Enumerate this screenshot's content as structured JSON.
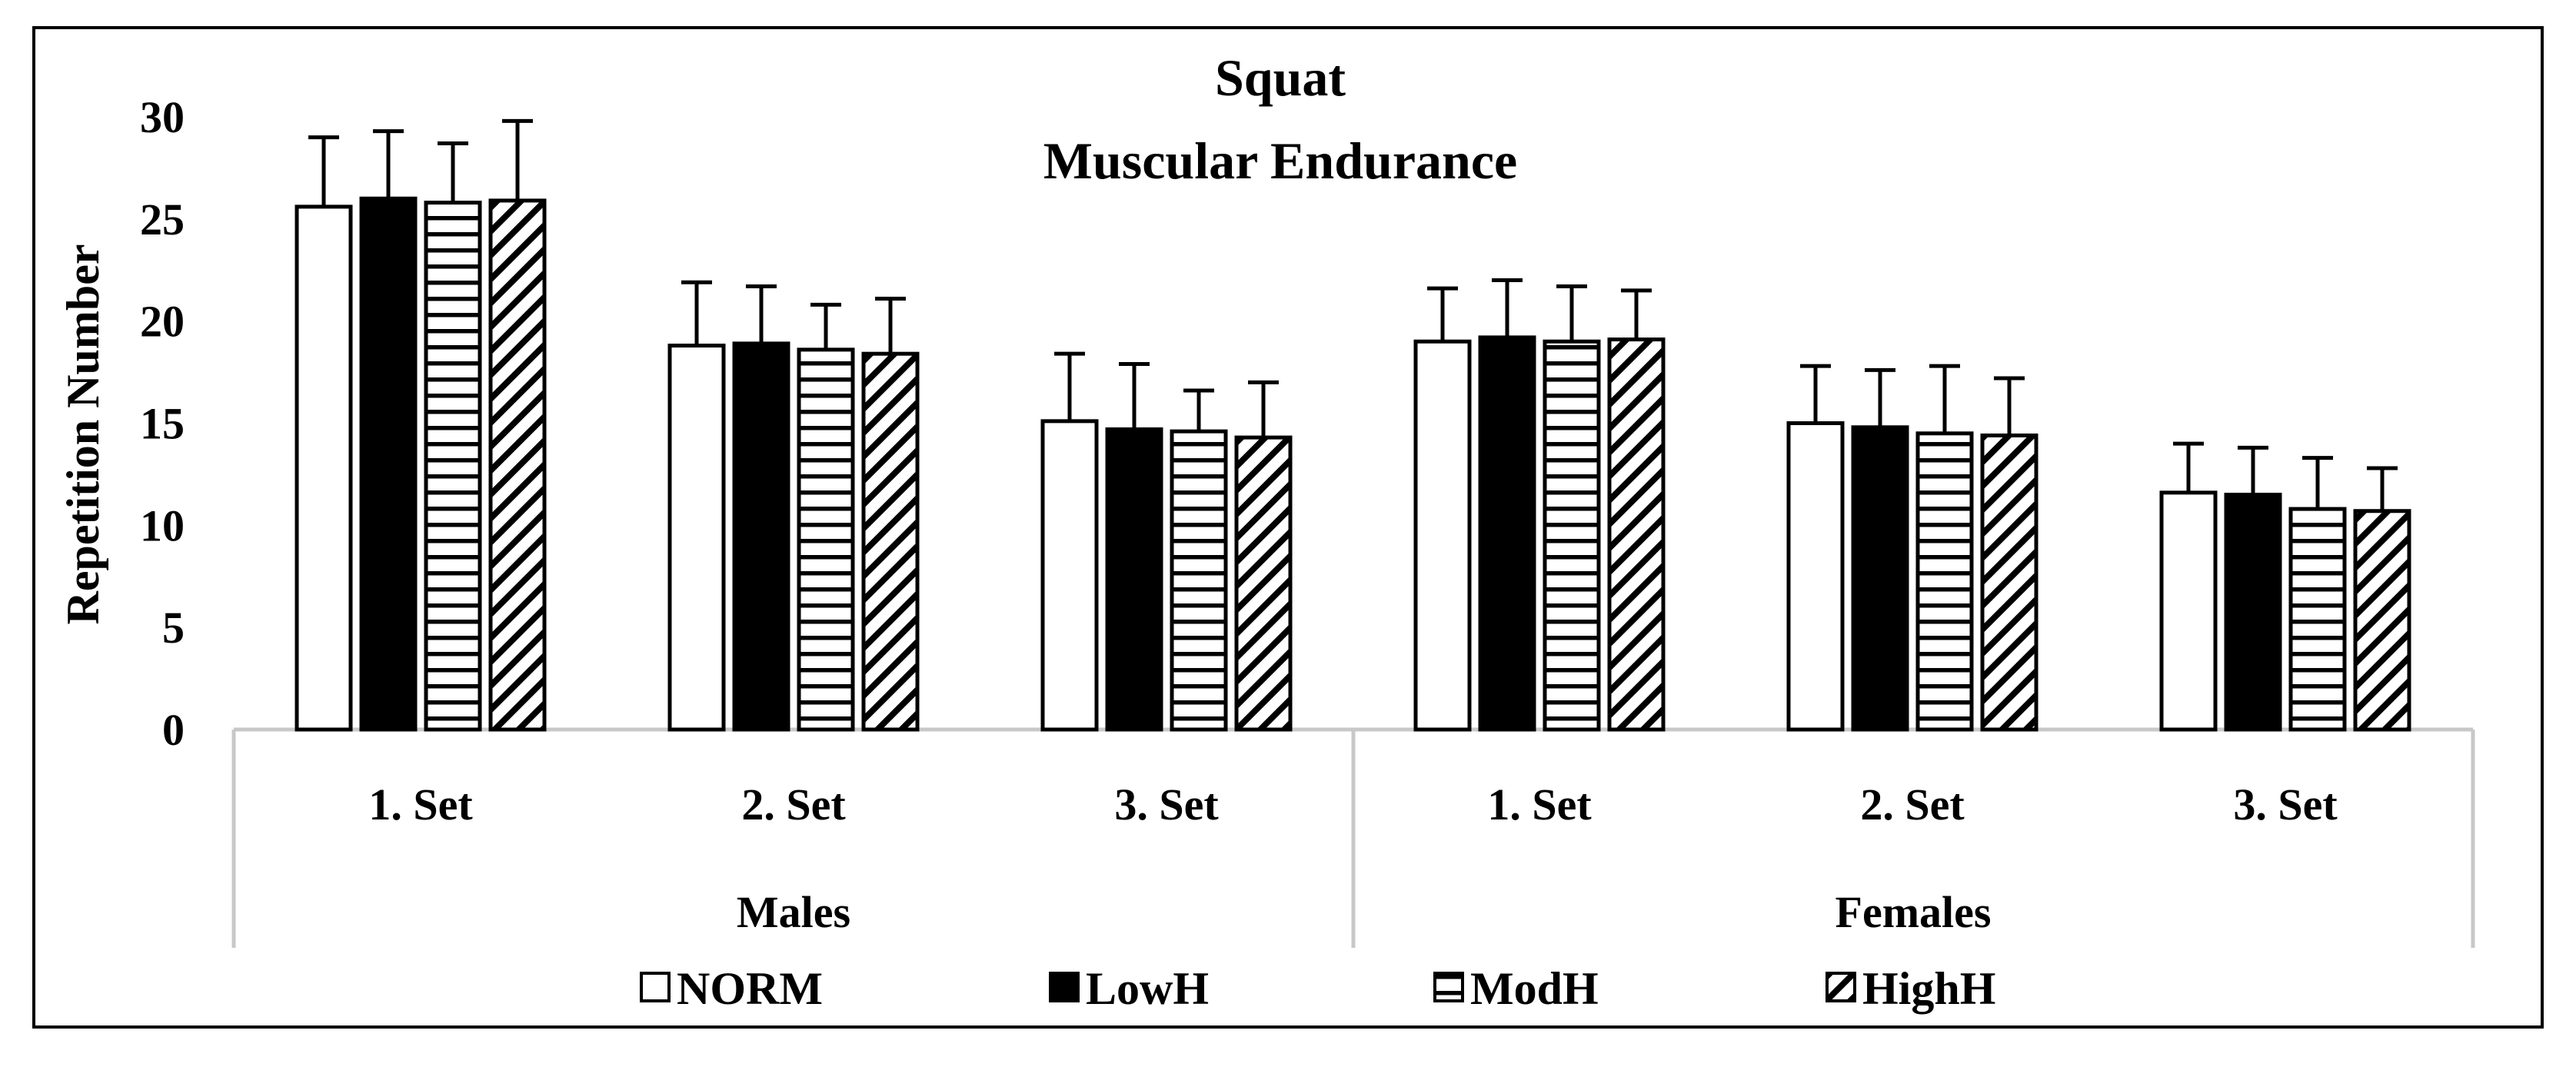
{
  "chart_data": {
    "type": "bar",
    "title": "Squat",
    "subtitle": "Muscular Endurance",
    "ylabel": "Repetition Number",
    "xlabel": "",
    "ylim": [
      0,
      30
    ],
    "yticks": [
      0,
      5,
      10,
      15,
      20,
      25,
      30
    ],
    "grid": false,
    "legend_position": "bottom",
    "groups": [
      {
        "name": "Males",
        "categories": [
          "1. Set",
          "2. Set",
          "3. Set"
        ]
      },
      {
        "name": "Females",
        "categories": [
          "1. Set",
          "2. Set",
          "3. Set"
        ]
      }
    ],
    "series": [
      {
        "name": "NORM",
        "pattern": "open",
        "values": [
          25.6,
          18.8,
          15.1,
          19.0,
          15.0,
          11.6
        ],
        "errors": [
          3.4,
          3.1,
          3.3,
          2.6,
          2.8,
          2.4
        ]
      },
      {
        "name": "LowH",
        "pattern": "solid",
        "values": [
          26.0,
          18.9,
          14.7,
          19.2,
          14.8,
          11.5
        ],
        "errors": [
          3.3,
          2.8,
          3.2,
          2.8,
          2.8,
          2.3
        ]
      },
      {
        "name": "ModH",
        "pattern": "horizontal",
        "values": [
          25.8,
          18.6,
          14.6,
          19.0,
          14.5,
          10.8
        ],
        "errors": [
          2.9,
          2.2,
          2.0,
          2.7,
          3.3,
          2.5
        ]
      },
      {
        "name": "HighH",
        "pattern": "diagonal",
        "values": [
          25.9,
          18.4,
          14.3,
          19.1,
          14.4,
          10.7
        ],
        "errors": [
          3.9,
          2.7,
          2.7,
          2.4,
          2.8,
          2.1
        ]
      }
    ]
  },
  "colors": {
    "ink": "#000000",
    "frame": "#000000",
    "axis_gray": "#c8c8c8",
    "background": "#ffffff"
  }
}
